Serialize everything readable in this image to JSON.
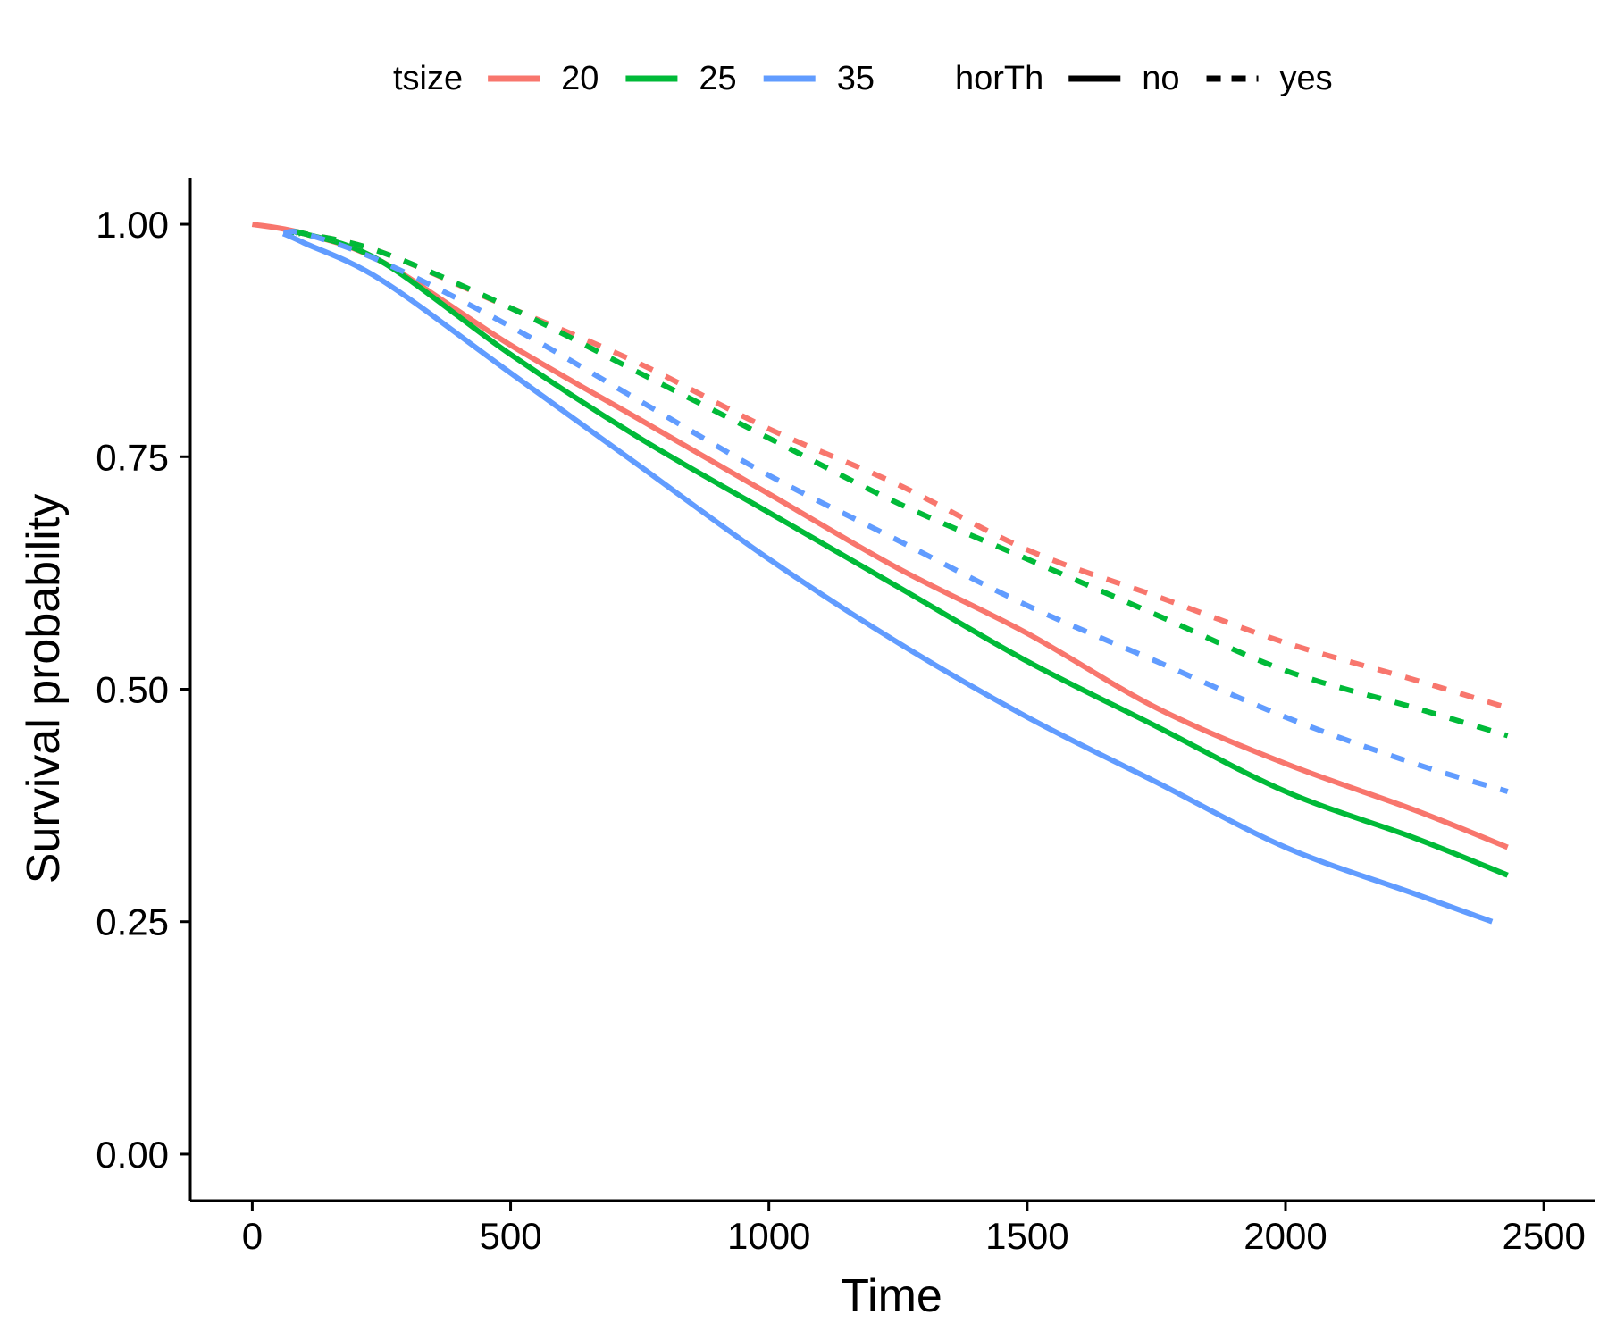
{
  "chart_data": {
    "type": "line",
    "xlabel": "Time",
    "ylabel": "Survival probability",
    "xlim": [
      -120,
      2600
    ],
    "ylim": [
      -0.05,
      1.05
    ],
    "x_ticks": [
      0,
      500,
      1000,
      1500,
      2000,
      2500
    ],
    "x_tick_labels": [
      "0",
      "500",
      "1000",
      "1500",
      "2000",
      "2500"
    ],
    "y_ticks": [
      0,
      0.25,
      0.5,
      0.75,
      1.0
    ],
    "y_tick_labels": [
      "0.00",
      "0.25",
      "0.50",
      "0.75",
      "1.00"
    ],
    "grid": false,
    "legend": {
      "position": "top",
      "groups": [
        {
          "title": "tsize",
          "kind": "color",
          "entries": [
            {
              "label": "20",
              "color": "#F8766D"
            },
            {
              "label": "25",
              "color": "#00BA38"
            },
            {
              "label": "35",
              "color": "#619CFF"
            }
          ]
        },
        {
          "title": "horTh",
          "kind": "linetype",
          "entries": [
            {
              "label": "no",
              "dash": "solid"
            },
            {
              "label": "yes",
              "dash": "dashed"
            }
          ]
        }
      ]
    },
    "series": [
      {
        "tsize": "20",
        "horTh": "no",
        "color": "#F8766D",
        "dash": "solid",
        "x": [
          0,
          100,
          250,
          500,
          750,
          1000,
          1250,
          1500,
          1750,
          2000,
          2250,
          2430
        ],
        "y": [
          1.0,
          0.99,
          0.96,
          0.87,
          0.79,
          0.71,
          0.63,
          0.56,
          0.48,
          0.42,
          0.37,
          0.33
        ]
      },
      {
        "tsize": "25",
        "horTh": "no",
        "color": "#00BA38",
        "dash": "solid",
        "x": [
          75,
          100,
          250,
          500,
          750,
          1000,
          1250,
          1500,
          1750,
          2000,
          2250,
          2430
        ],
        "y": [
          0.99,
          0.99,
          0.96,
          0.86,
          0.77,
          0.69,
          0.61,
          0.53,
          0.46,
          0.39,
          0.34,
          0.3
        ]
      },
      {
        "tsize": "35",
        "horTh": "no",
        "color": "#619CFF",
        "dash": "solid",
        "x": [
          60,
          100,
          250,
          500,
          750,
          1000,
          1250,
          1500,
          1750,
          2000,
          2250,
          2400
        ],
        "y": [
          0.99,
          0.98,
          0.94,
          0.84,
          0.74,
          0.64,
          0.55,
          0.47,
          0.4,
          0.33,
          0.28,
          0.25
        ]
      },
      {
        "tsize": "20",
        "horTh": "yes",
        "color": "#F8766D",
        "dash": "dashed",
        "x": [
          90,
          100,
          250,
          500,
          750,
          1000,
          1250,
          1500,
          1750,
          2000,
          2250,
          2430
        ],
        "y": [
          0.99,
          0.99,
          0.97,
          0.91,
          0.85,
          0.78,
          0.72,
          0.65,
          0.6,
          0.55,
          0.51,
          0.48
        ]
      },
      {
        "tsize": "25",
        "horTh": "yes",
        "color": "#00BA38",
        "dash": "dashed",
        "x": [
          90,
          100,
          250,
          500,
          750,
          1000,
          1250,
          1500,
          1750,
          2000,
          2250,
          2430
        ],
        "y": [
          0.99,
          0.99,
          0.97,
          0.91,
          0.84,
          0.77,
          0.7,
          0.64,
          0.58,
          0.52,
          0.48,
          0.45
        ]
      },
      {
        "tsize": "35",
        "horTh": "yes",
        "color": "#619CFF",
        "dash": "dashed",
        "x": [
          60,
          100,
          250,
          500,
          750,
          1000,
          1250,
          1500,
          1750,
          2000,
          2250,
          2430
        ],
        "y": [
          0.99,
          0.99,
          0.96,
          0.89,
          0.81,
          0.73,
          0.66,
          0.59,
          0.53,
          0.47,
          0.42,
          0.39
        ]
      }
    ]
  }
}
